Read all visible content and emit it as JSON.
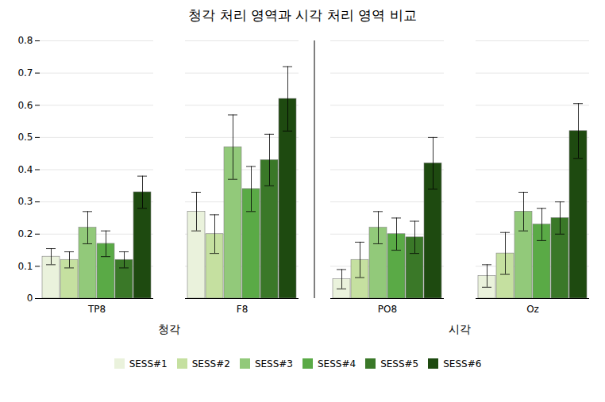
{
  "chart_data": {
    "type": "bar",
    "title": "청각 처리 영역과 시각 처리 영역 비교",
    "categories": [
      "TP8",
      "F8",
      "PO8",
      "Oz"
    ],
    "series": [
      {
        "name": "SESS#1",
        "color": "#eaf2dc",
        "values": [
          0.13,
          0.27,
          0.06,
          0.07
        ],
        "errors": [
          0.025,
          0.06,
          0.03,
          0.035
        ]
      },
      {
        "name": "SESS#2",
        "color": "#c5e0a0",
        "values": [
          0.12,
          0.2,
          0.12,
          0.14
        ],
        "errors": [
          0.025,
          0.06,
          0.055,
          0.065
        ]
      },
      {
        "name": "SESS#3",
        "color": "#92c97a",
        "values": [
          0.22,
          0.47,
          0.22,
          0.27
        ],
        "errors": [
          0.05,
          0.1,
          0.05,
          0.06
        ]
      },
      {
        "name": "SESS#4",
        "color": "#5aaa46",
        "values": [
          0.17,
          0.34,
          0.2,
          0.23
        ],
        "errors": [
          0.04,
          0.07,
          0.05,
          0.05
        ]
      },
      {
        "name": "SESS#5",
        "color": "#3a7828",
        "values": [
          0.12,
          0.43,
          0.19,
          0.25
        ],
        "errors": [
          0.025,
          0.08,
          0.05,
          0.05
        ]
      },
      {
        "name": "SESS#6",
        "color": "#1e4a10",
        "values": [
          0.33,
          0.62,
          0.42,
          0.52
        ],
        "errors": [
          0.05,
          0.1,
          0.08,
          0.085
        ]
      }
    ],
    "annotations": [
      {
        "text": "청각",
        "categories": [
          "TP8",
          "F8"
        ]
      },
      {
        "text": "시각",
        "categories": [
          "PO8",
          "Oz"
        ]
      }
    ],
    "ylim": [
      0,
      0.8
    ],
    "yticks": [
      0,
      0.1,
      0.2,
      0.3,
      0.4,
      0.5,
      0.6,
      0.7,
      0.8
    ],
    "grid": true,
    "legend": "bottom"
  }
}
